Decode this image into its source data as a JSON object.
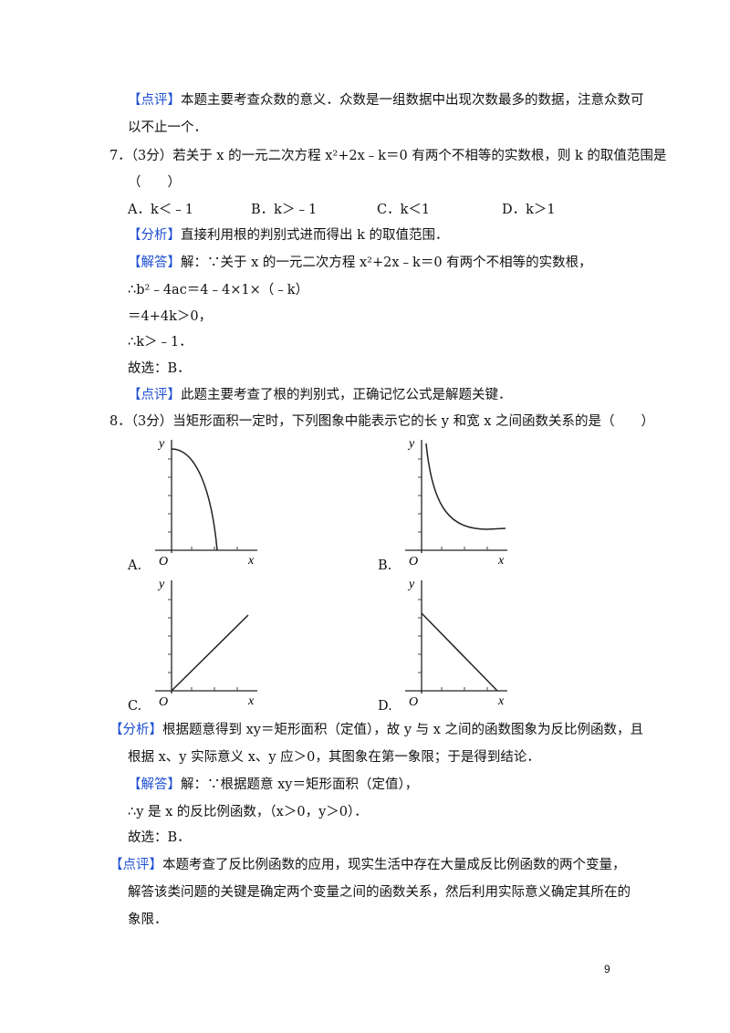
{
  "lines": [
    {
      "label": "【点评】",
      "text": "本题主要考查众数的意义．众数是一组数据中出现次数最多的数据，注意众数可"
    },
    {
      "text": "以不止一个．"
    },
    {
      "text": "7．（3分）若关于 x 的一元二次方程 x²+2x﹣k＝0 有两个不相等的实数根，则 k 的取值范围是"
    },
    {
      "text": "（　　）"
    },
    {
      "label": "【分析】",
      "text": "直接利用根的判别式进而得出 k 的取值范围．"
    },
    {
      "label": "【解答】",
      "text": "解：∵关于 x 的一元二次方程 x²+2x﹣k＝0 有两个不相等的实数根，"
    },
    {
      "text": "∴b²﹣4ac＝4﹣4×1×（﹣k）"
    },
    {
      "text": "＝4+4k＞0，"
    },
    {
      "text": "∴k＞﹣1．"
    },
    {
      "text": "故选：B．"
    },
    {
      "label": "【点评】",
      "text": "此题主要考查了根的判别式，正确记忆公式是解题关键．"
    },
    {
      "text": "8．（3分）当矩形面积一定时，下列图象中能表示它的长 y 和宽 x 之间函数关系的是（　　）"
    },
    {
      "label": "【分析】",
      "text": "根据题意得到 xy＝矩形面积（定值），故 y 与 x 之间的函数图象为反比例函数，且"
    },
    {
      "text": "根据 x、y 实际意义 x、y 应＞0，其图象在第一象限；于是得到结论．"
    },
    {
      "label": "【解答】",
      "text": "解：∵根据题意 xy＝矩形面积（定值），"
    },
    {
      "text": "∴y 是 x 的反比例函数，（x＞0，y＞0）．"
    },
    {
      "text": "故选：B．"
    },
    {
      "label": "【点评】",
      "text": "本题考查了反比例函数的应用，现实生活中存在大量成反比例函数的两个变量，"
    },
    {
      "text": "解答该类问题的关键是确定两个变量之间的函数关系，然后利用实际意义确定其所在的"
    },
    {
      "text": "象限．"
    }
  ],
  "options": [
    "A．k＜﹣1",
    "B．k＞﹣1",
    "C．k＜1",
    "D．k＞1"
  ],
  "graphs": [
    {
      "letter": "A.",
      "y": "y",
      "x": "x",
      "o": "O"
    },
    {
      "letter": "B.",
      "y": "y",
      "x": "x",
      "o": "O"
    },
    {
      "letter": "C.",
      "y": "y",
      "x": "x",
      "o": "O"
    },
    {
      "letter": "D.",
      "y": "y",
      "x": "x",
      "o": "O"
    }
  ],
  "page_number": "9"
}
